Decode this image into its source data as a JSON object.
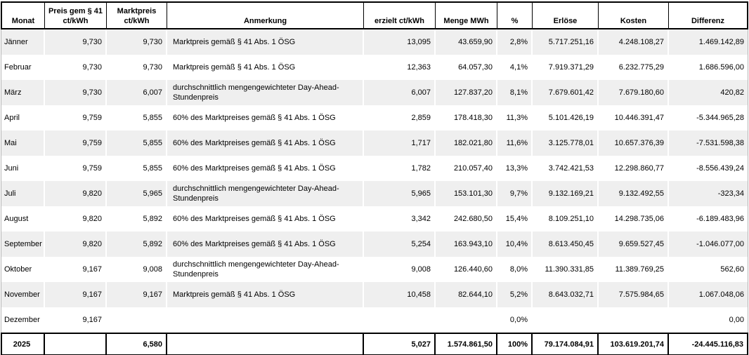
{
  "table": {
    "columns": [
      {
        "id": "monat",
        "label": "Monat"
      },
      {
        "id": "preis",
        "label": "Preis gem § 41\nct/kWh"
      },
      {
        "id": "marktpreis",
        "label": "Marktpreis\nct/kWh"
      },
      {
        "id": "anmerkung",
        "label": "Anmerkung"
      },
      {
        "id": "erzielt",
        "label": "erzielt ct/kWh"
      },
      {
        "id": "menge",
        "label": "Menge MWh"
      },
      {
        "id": "pct",
        "label": "%"
      },
      {
        "id": "erloese",
        "label": "Erlöse"
      },
      {
        "id": "kosten",
        "label": "Kosten"
      },
      {
        "id": "differenz",
        "label": "Differenz"
      }
    ],
    "rows": [
      {
        "monat": "Jänner",
        "preis": "9,730",
        "marktpreis": "9,730",
        "anmerkung": "Marktpreis gemäß § 41 Abs. 1 ÖSG",
        "erzielt": "13,095",
        "menge": "43.659,90",
        "pct": "2,8%",
        "erloese": "5.717.251,16",
        "kosten": "4.248.108,27",
        "differenz": "1.469.142,89"
      },
      {
        "monat": "Februar",
        "preis": "9,730",
        "marktpreis": "9,730",
        "anmerkung": "Marktpreis gemäß § 41 Abs. 1 ÖSG",
        "erzielt": "12,363",
        "menge": "64.057,30",
        "pct": "4,1%",
        "erloese": "7.919.371,29",
        "kosten": "6.232.775,29",
        "differenz": "1.686.596,00"
      },
      {
        "monat": "März",
        "preis": "9,730",
        "marktpreis": "6,007",
        "anmerkung": "durchschnittlich mengengewichteter Day-Ahead-Stundenpreis",
        "erzielt": "6,007",
        "menge": "127.837,20",
        "pct": "8,1%",
        "erloese": "7.679.601,42",
        "kosten": "7.679.180,60",
        "differenz": "420,82"
      },
      {
        "monat": "April",
        "preis": "9,759",
        "marktpreis": "5,855",
        "anmerkung": "60% des Marktpreises gemäß § 41 Abs. 1 ÖSG",
        "erzielt": "2,859",
        "menge": "178.418,30",
        "pct": "11,3%",
        "erloese": "5.101.426,19",
        "kosten": "10.446.391,47",
        "differenz": "-5.344.965,28"
      },
      {
        "monat": "Mai",
        "preis": "9,759",
        "marktpreis": "5,855",
        "anmerkung": "60% des Marktpreises gemäß § 41 Abs. 1 ÖSG",
        "erzielt": "1,717",
        "menge": "182.021,80",
        "pct": "11,6%",
        "erloese": "3.125.778,01",
        "kosten": "10.657.376,39",
        "differenz": "-7.531.598,38"
      },
      {
        "monat": "Juni",
        "preis": "9,759",
        "marktpreis": "5,855",
        "anmerkung": "60% des Marktpreises gemäß § 41 Abs. 1 ÖSG",
        "erzielt": "1,782",
        "menge": "210.057,40",
        "pct": "13,3%",
        "erloese": "3.742.421,53",
        "kosten": "12.298.860,77",
        "differenz": "-8.556.439,24"
      },
      {
        "monat": "Juli",
        "preis": "9,820",
        "marktpreis": "5,965",
        "anmerkung": "durchschnittlich mengengewichteter Day-Ahead-Stundenpreis",
        "erzielt": "5,965",
        "menge": "153.101,30",
        "pct": "9,7%",
        "erloese": "9.132.169,21",
        "kosten": "9.132.492,55",
        "differenz": "-323,34"
      },
      {
        "monat": "August",
        "preis": "9,820",
        "marktpreis": "5,892",
        "anmerkung": "60% des Marktpreises gemäß § 41 Abs. 1 ÖSG",
        "erzielt": "3,342",
        "menge": "242.680,50",
        "pct": "15,4%",
        "erloese": "8.109.251,10",
        "kosten": "14.298.735,06",
        "differenz": "-6.189.483,96"
      },
      {
        "monat": "September",
        "preis": "9,820",
        "marktpreis": "5,892",
        "anmerkung": "60% des Marktpreises gemäß § 41 Abs. 1 ÖSG",
        "erzielt": "5,254",
        "menge": "163.943,10",
        "pct": "10,4%",
        "erloese": "8.613.450,45",
        "kosten": "9.659.527,45",
        "differenz": "-1.046.077,00"
      },
      {
        "monat": "Oktober",
        "preis": "9,167",
        "marktpreis": "9,008",
        "anmerkung": "durchschnittlich mengengewichteter Day-Ahead-Stundenpreis",
        "erzielt": "9,008",
        "menge": "126.440,60",
        "pct": "8,0%",
        "erloese": "11.390.331,85",
        "kosten": "11.389.769,25",
        "differenz": "562,60"
      },
      {
        "monat": "November",
        "preis": "9,167",
        "marktpreis": "9,167",
        "anmerkung": "Marktpreis gemäß § 41 Abs. 1 ÖSG",
        "erzielt": "10,458",
        "menge": "82.644,10",
        "pct": "5,2%",
        "erloese": "8.643.032,71",
        "kosten": "7.575.984,65",
        "differenz": "1.067.048,06"
      },
      {
        "monat": "Dezember",
        "preis": "9,167",
        "marktpreis": "",
        "anmerkung": "",
        "erzielt": "",
        "menge": "",
        "pct": "0,0%",
        "erloese": "",
        "kosten": "",
        "differenz": "0,00"
      }
    ],
    "total_row": {
      "monat": "2025",
      "preis": "",
      "marktpreis": "6,580",
      "anmerkung": "",
      "erzielt": "5,027",
      "menge": "1.574.861,50",
      "pct": "100%",
      "erloese": "79.174.084,91",
      "kosten": "103.619.201,74",
      "differenz": "-24.445.116,83"
    }
  },
  "colors": {
    "stripe": "#efefef",
    "border_dark": "#000000",
    "gridline": "#b7b7b7"
  }
}
